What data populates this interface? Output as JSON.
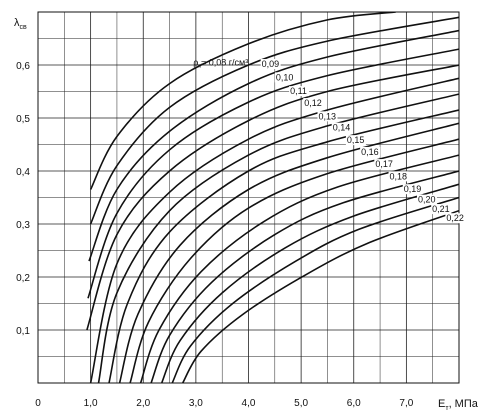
{
  "chart_data": {
    "type": "line",
    "ylabel": "λ",
    "ylabel_sub": "св",
    "xlabel": "E",
    "xlabel_sub": "т",
    "xlabel_unit": ", МПа",
    "xlim": [
      0,
      8.0
    ],
    "ylim": [
      0,
      0.7
    ],
    "grid": true,
    "x_ticks": [
      "0",
      "1,0",
      "2,0",
      "3,0",
      "4,0",
      "5,0",
      "6,0",
      "7,0"
    ],
    "y_ticks": [
      "0,1",
      "0,2",
      "0,3",
      "0,4",
      "0,5",
      "0,6"
    ],
    "density_prefix": "ρ",
    "density_prefix_sub": "к",
    "density_unit_first": "= 0,08 г/см³",
    "series": [
      {
        "name": "0,08",
        "x": [
          1.0,
          1.5,
          2.5,
          4.0,
          5.5,
          6.8
        ],
        "y": [
          0.365,
          0.465,
          0.565,
          0.64,
          0.685,
          0.7
        ]
      },
      {
        "name": "0,09",
        "x": [
          1.0,
          1.5,
          2.5,
          4.0,
          5.5,
          8.0
        ],
        "y": [
          0.3,
          0.41,
          0.52,
          0.6,
          0.645,
          0.69
        ]
      },
      {
        "name": "0,10",
        "x": [
          0.97,
          1.5,
          2.5,
          4.0,
          5.5,
          8.0
        ],
        "y": [
          0.23,
          0.365,
          0.475,
          0.565,
          0.615,
          0.665
        ]
      },
      {
        "name": "0,11",
        "x": [
          0.95,
          1.5,
          2.5,
          4.0,
          5.5,
          8.0
        ],
        "y": [
          0.16,
          0.32,
          0.44,
          0.53,
          0.58,
          0.63
        ]
      },
      {
        "name": "0,12",
        "x": [
          0.93,
          1.5,
          2.5,
          4.0,
          5.5,
          8.0
        ],
        "y": [
          0.1,
          0.28,
          0.4,
          0.495,
          0.55,
          0.6
        ]
      },
      {
        "name": "0,13",
        "x": [
          1.0,
          1.5,
          2.5,
          4.0,
          5.5,
          8.0
        ],
        "y": [
          0.0,
          0.225,
          0.36,
          0.46,
          0.515,
          0.575
        ]
      },
      {
        "name": "0,14",
        "x": [
          1.15,
          1.5,
          2.5,
          4.0,
          5.5,
          8.0
        ],
        "y": [
          0.0,
          0.17,
          0.325,
          0.43,
          0.485,
          0.545
        ]
      },
      {
        "name": "0,15",
        "x": [
          1.35,
          1.7,
          2.5,
          4.0,
          5.5,
          8.0
        ],
        "y": [
          0.0,
          0.15,
          0.285,
          0.4,
          0.455,
          0.515
        ]
      },
      {
        "name": "0,16",
        "x": [
          1.55,
          1.9,
          2.7,
          4.0,
          5.5,
          8.0
        ],
        "y": [
          0.0,
          0.13,
          0.26,
          0.365,
          0.425,
          0.49
        ]
      },
      {
        "name": "0,17",
        "x": [
          1.75,
          2.1,
          2.9,
          4.0,
          5.5,
          8.0
        ],
        "y": [
          0.0,
          0.115,
          0.235,
          0.33,
          0.395,
          0.46
        ]
      },
      {
        "name": "0,18",
        "x": [
          1.95,
          2.3,
          3.1,
          4.3,
          5.7,
          8.0
        ],
        "y": [
          0.0,
          0.1,
          0.21,
          0.305,
          0.37,
          0.43
        ]
      },
      {
        "name": "0,19",
        "x": [
          2.15,
          2.5,
          3.3,
          4.5,
          5.8,
          8.0
        ],
        "y": [
          0.0,
          0.09,
          0.19,
          0.28,
          0.34,
          0.4
        ]
      },
      {
        "name": "0,20",
        "x": [
          2.35,
          2.7,
          3.5,
          4.7,
          6.0,
          8.0
        ],
        "y": [
          0.0,
          0.08,
          0.17,
          0.255,
          0.315,
          0.375
        ]
      },
      {
        "name": "0,21",
        "x": [
          2.55,
          2.9,
          3.7,
          4.9,
          6.1,
          8.0
        ],
        "y": [
          0.0,
          0.07,
          0.15,
          0.23,
          0.29,
          0.35
        ]
      },
      {
        "name": "0,22",
        "x": [
          2.75,
          3.1,
          3.9,
          5.1,
          6.3,
          8.0
        ],
        "y": [
          0.0,
          0.06,
          0.13,
          0.205,
          0.265,
          0.325
        ]
      }
    ]
  }
}
